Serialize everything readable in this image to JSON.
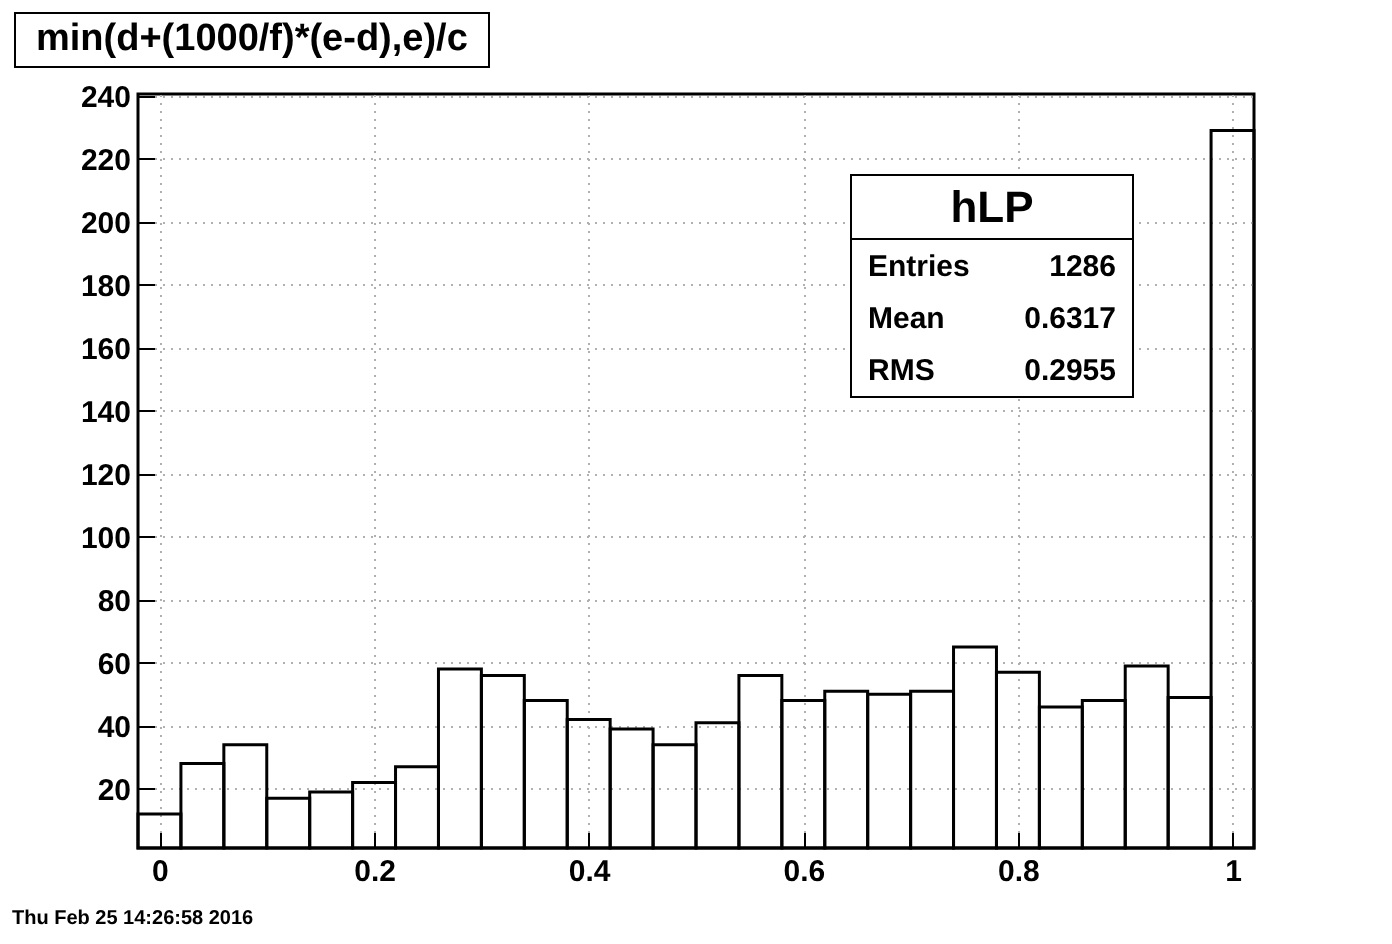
{
  "chart_data": {
    "type": "histogram",
    "title": "min(d+(1000/f)*(e-d),e)/c",
    "bins": [
      -0.02,
      0.02,
      0.06,
      0.1,
      0.14,
      0.18,
      0.22,
      0.26,
      0.3,
      0.34,
      0.38,
      0.42,
      0.46,
      0.5,
      0.54,
      0.58,
      0.62,
      0.66,
      0.7,
      0.74,
      0.78,
      0.82,
      0.86,
      0.9,
      0.94,
      0.98,
      1.02
    ],
    "values": [
      12,
      28,
      34,
      17,
      19,
      22,
      27,
      58,
      56,
      48,
      42,
      39,
      34,
      41,
      56,
      48,
      51,
      50,
      51,
      65,
      57,
      46,
      48,
      59,
      49,
      229
    ],
    "color": "#000000",
    "xlim": [
      -0.02,
      1.02
    ],
    "xticks": [
      0,
      0.2,
      0.4,
      0.6,
      0.8,
      1
    ],
    "ylim": [
      1.2,
      240.6
    ],
    "yticks": [
      20,
      40,
      60,
      80,
      100,
      120,
      140,
      160,
      180,
      200,
      220,
      240
    ],
    "grid": true,
    "annotations": [
      "hLP",
      "Entries",
      "1286",
      "Mean",
      "0.6317",
      "RMS",
      "0.2955",
      "Thu Feb 25 14:26:58 2016"
    ]
  }
}
